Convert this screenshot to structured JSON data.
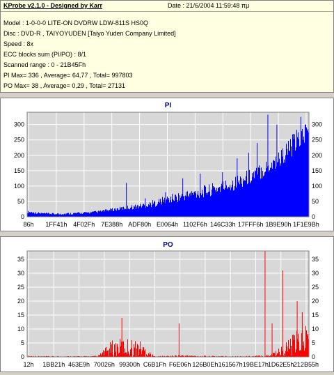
{
  "info": {
    "title": "KProbe v2.1.0 - Designed by Karr",
    "date": "Date : 21/6/2004 11:59:48 πμ",
    "model": "Model : 1-0-0-0 LITE-ON DVDRW LDW-811S   HS0Q",
    "disc": "Disc : DVD-R , TAIYOYUDEN [Taiyo Yuden Company Limited]",
    "speed": "Speed : 8x",
    "ecc": "ECC blocks sum (PI/PO) : 8/1",
    "range": "Scanned range : 0 - 21B45Fh",
    "pi_stats": "PI Max= 336 , Average= 64,77 , Total= 997803",
    "po_stats": "PO Max= 38 , Average= 0,29 , Total= 27131"
  },
  "colors": {
    "pi": "#0000ff",
    "po": "#ff0000",
    "plot_bg": "#d8d8d8",
    "grid": "#ffffff",
    "title": "#000080"
  },
  "chart_data": [
    {
      "type": "area",
      "title": "PI",
      "grid": true,
      "ylim": [
        0,
        340
      ],
      "yticks": [
        0,
        50,
        100,
        150,
        200,
        250,
        300
      ],
      "xlabels": [
        "86h",
        "1FF41h",
        "4F02Fh",
        "7E388h",
        "ADF80h",
        "E0064h",
        "1102F6h",
        "146C33h",
        "17FFF6h",
        "1B9E90h",
        "1F1E9Bh"
      ],
      "x": [
        0,
        0.05,
        0.1,
        0.15,
        0.2,
        0.25,
        0.3,
        0.35,
        0.4,
        0.45,
        0.5,
        0.55,
        0.6,
        0.65,
        0.7,
        0.75,
        0.8,
        0.85,
        0.9,
        0.95,
        1.0
      ],
      "baseline": [
        12,
        8,
        6,
        7,
        9,
        12,
        18,
        22,
        26,
        32,
        42,
        50,
        58,
        66,
        76,
        90,
        108,
        132,
        162,
        200,
        240
      ],
      "peak": [
        20,
        14,
        12,
        14,
        16,
        20,
        28,
        36,
        44,
        56,
        72,
        84,
        96,
        108,
        122,
        140,
        162,
        190,
        224,
        280,
        320
      ],
      "spikes": [
        [
          0.351,
          110
        ],
        [
          0.418,
          60
        ],
        [
          0.49,
          80
        ],
        [
          0.551,
          125
        ],
        [
          0.613,
          140
        ],
        [
          0.692,
          145
        ],
        [
          0.744,
          190
        ],
        [
          0.785,
          208
        ],
        [
          0.815,
          240
        ],
        [
          0.853,
          332
        ],
        [
          0.885,
          300
        ],
        [
          0.97,
          325
        ],
        [
          0.985,
          300
        ]
      ]
    },
    {
      "type": "area",
      "title": "PO",
      "grid": true,
      "ylim": [
        0,
        38
      ],
      "yticks": [
        0,
        5,
        10,
        15,
        20,
        25,
        30,
        35
      ],
      "xlabels": [
        "12h",
        "1BB21h",
        "463E9h",
        "70026h",
        "99300h",
        "C6B1Fh",
        "F6E06h",
        "126B0Eh",
        "161567h",
        "19BE17h",
        "1D62E5h",
        "212B55h"
      ],
      "x": [
        0,
        0.05,
        0.1,
        0.15,
        0.2,
        0.25,
        0.3,
        0.35,
        0.4,
        0.45,
        0.5,
        0.55,
        0.6,
        0.65,
        0.7,
        0.75,
        0.8,
        0.85,
        0.9,
        0.95,
        1.0
      ],
      "baseline": [
        0,
        0,
        0,
        0,
        0,
        0,
        0,
        0,
        0,
        0,
        0,
        0,
        0,
        0,
        0,
        0,
        0,
        0,
        0,
        0,
        0
      ],
      "peak": [
        0.5,
        0.3,
        0.3,
        0.3,
        0.3,
        0.4,
        6,
        7,
        6,
        0.3,
        0.5,
        0.8,
        0.5,
        0.4,
        0.4,
        0.3,
        0.4,
        0.8,
        4,
        9,
        14
      ],
      "spikes": [
        [
          0.335,
          14
        ],
        [
          0.538,
          12
        ],
        [
          0.843,
          38
        ],
        [
          0.868,
          12
        ],
        [
          0.906,
          31
        ],
        [
          0.957,
          20
        ],
        [
          0.975,
          16
        ]
      ]
    }
  ]
}
